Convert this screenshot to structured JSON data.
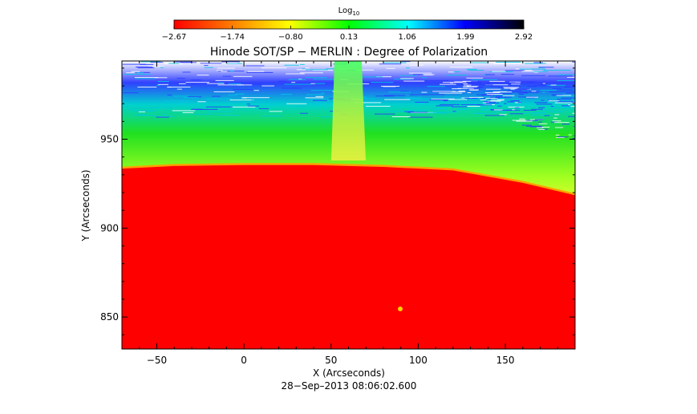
{
  "chart_data": {
    "type": "heatmap",
    "title": "Hinode SOT/SP − MERLIN : Degree of Polarization",
    "colorbar": {
      "label_base": "Log",
      "label_sub": "10",
      "ticks": [
        "−2.67",
        "−1.74",
        "−0.80",
        "0.13",
        "1.06",
        "1.99",
        "2.92"
      ],
      "range": [
        -2.67,
        2.92
      ],
      "colors": [
        "#ff0000",
        "#ff8000",
        "#ffff00",
        "#00ff00",
        "#00ffff",
        "#0000ff",
        "#000000"
      ]
    },
    "xlabel": "X (Arcseconds)",
    "ylabel": "Y (Arcseconds)",
    "xlim": [
      -70,
      190
    ],
    "ylim": [
      832,
      994
    ],
    "xticks": [
      -50,
      0,
      50,
      100,
      150
    ],
    "yticks": [
      850,
      900,
      950
    ],
    "timestamp": "28−Sep–2013 08:06:02.600",
    "limb": {
      "x": [
        -70,
        -40,
        0,
        40,
        80,
        120,
        160,
        190
      ],
      "y": [
        934,
        935.5,
        936,
        936,
        935,
        933,
        926,
        919
      ]
    },
    "grid": false
  }
}
